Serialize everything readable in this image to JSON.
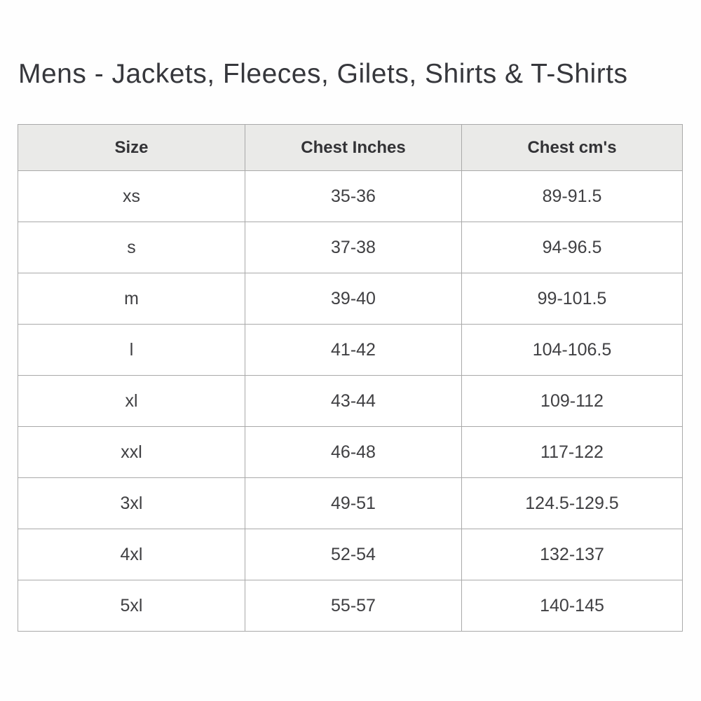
{
  "page": {
    "title": "Mens - Jackets, Fleeces, Gilets, Shirts & T-Shirts"
  },
  "table": {
    "headers": [
      "Size",
      "Chest Inches",
      "Chest cm's"
    ],
    "rows": [
      [
        "xs",
        "35-36",
        "89-91.5"
      ],
      [
        "s",
        "37-38",
        "94-96.5"
      ],
      [
        "m",
        "39-40",
        "99-101.5"
      ],
      [
        "l",
        "41-42",
        "104-106.5"
      ],
      [
        "xl",
        "43-44",
        "109-112"
      ],
      [
        "xxl",
        "46-48",
        "117-122"
      ],
      [
        "3xl",
        "49-51",
        "124.5-129.5"
      ],
      [
        "4xl",
        "52-54",
        "132-137"
      ],
      [
        "5xl",
        "55-57",
        "140-145"
      ]
    ]
  },
  "colors": {
    "header_background": "#eaeae8",
    "border": "#a9a9a9",
    "title_text": "#36373c",
    "cell_text": "#404043"
  },
  "chart_data": {
    "type": "table",
    "title": "Mens - Jackets, Fleeces, Gilets, Shirts & T-Shirts",
    "columns": [
      "Size",
      "Chest Inches",
      "Chest cm's"
    ],
    "rows": [
      {
        "size": "xs",
        "chest_inches": "35-36",
        "chest_cms": "89-91.5"
      },
      {
        "size": "s",
        "chest_inches": "37-38",
        "chest_cms": "94-96.5"
      },
      {
        "size": "m",
        "chest_inches": "39-40",
        "chest_cms": "99-101.5"
      },
      {
        "size": "l",
        "chest_inches": "41-42",
        "chest_cms": "104-106.5"
      },
      {
        "size": "xl",
        "chest_inches": "43-44",
        "chest_cms": "109-112"
      },
      {
        "size": "xxl",
        "chest_inches": "46-48",
        "chest_cms": "117-122"
      },
      {
        "size": "3xl",
        "chest_inches": "49-51",
        "chest_cms": "124.5-129.5"
      },
      {
        "size": "4xl",
        "chest_inches": "52-54",
        "chest_cms": "132-137"
      },
      {
        "size": "5xl",
        "chest_inches": "55-57",
        "chest_cms": "140-145"
      }
    ]
  }
}
